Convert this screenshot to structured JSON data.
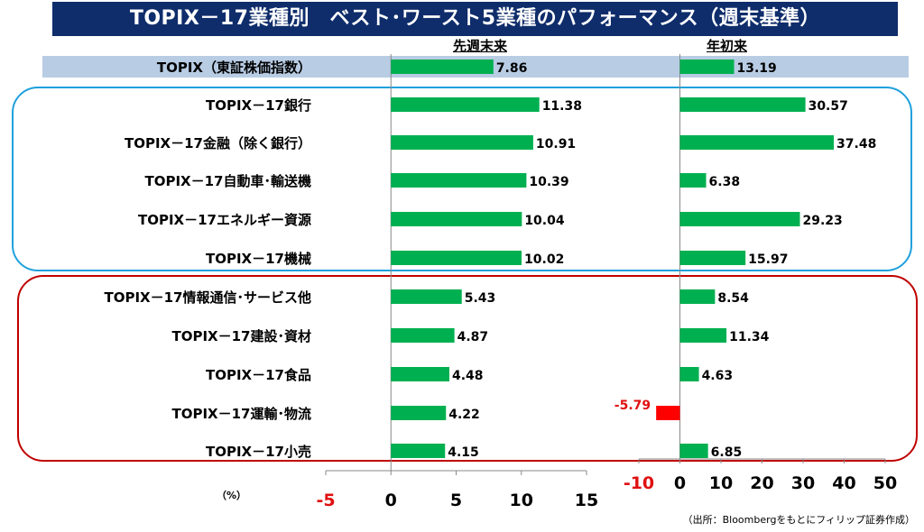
{
  "title": "TOPIX－17業種別　ベスト･ワースト5業種のパフォーマンス（週末基準）",
  "unit_label": "（%）",
  "source_note": "（出所：Bloombergをもとにフィリップ証券作成）",
  "colors": {
    "title_bg": "#0f2d6b",
    "bar_positive": "#00b050",
    "bar_negative": "#ff0000",
    "highlight_row": "#b8cce4",
    "best_box": "#1fa0dc",
    "worst_box": "#c00000",
    "negative_text": "#e01010"
  },
  "chart_data": [
    {
      "type": "bar",
      "orientation": "horizontal",
      "title": "先週末来",
      "xlim": [
        -5,
        15
      ],
      "xticks": [
        "-5",
        "0",
        "5",
        "10",
        "15"
      ],
      "categories": [
        "TOPIX（東証株価指数）",
        "TOPIX－17銀行",
        "TOPIX－17金融（除く銀行）",
        "TOPIX－17自動車･輸送機",
        "TOPIX－17エネルギー資源",
        "TOPIX－17機械",
        "TOPIX－17情報通信･サービス他",
        "TOPIX－17建設･資材",
        "TOPIX－17食品",
        "TOPIX－17運輸･物流",
        "TOPIX－17小売"
      ],
      "values": [
        7.86,
        11.38,
        10.91,
        10.39,
        10.04,
        10.02,
        5.43,
        4.87,
        4.48,
        4.22,
        4.15
      ],
      "value_labels": [
        "7.86",
        "11.38",
        "10.91",
        "10.39",
        "10.04",
        "10.02",
        "5.43",
        "4.87",
        "4.48",
        "4.22",
        "4.15"
      ]
    },
    {
      "type": "bar",
      "orientation": "horizontal",
      "title": "年初来",
      "xlim": [
        -10,
        50
      ],
      "xticks": [
        "-10",
        "0",
        "10",
        "20",
        "30",
        "40",
        "50"
      ],
      "categories": [
        "TOPIX（東証株価指数）",
        "TOPIX－17銀行",
        "TOPIX－17金融（除く銀行）",
        "TOPIX－17自動車･輸送機",
        "TOPIX－17エネルギー資源",
        "TOPIX－17機械",
        "TOPIX－17情報通信･サービス他",
        "TOPIX－17建設･資材",
        "TOPIX－17食品",
        "TOPIX－17運輸･物流",
        "TOPIX－17小売"
      ],
      "values": [
        13.19,
        30.57,
        37.48,
        6.38,
        29.23,
        15.97,
        8.54,
        11.34,
        4.63,
        -5.79,
        6.85
      ],
      "value_labels": [
        "13.19",
        "30.57",
        "37.48",
        "6.38",
        "29.23",
        "15.97",
        "8.54",
        "11.34",
        "4.63",
        "-5.79",
        "6.85"
      ]
    }
  ]
}
